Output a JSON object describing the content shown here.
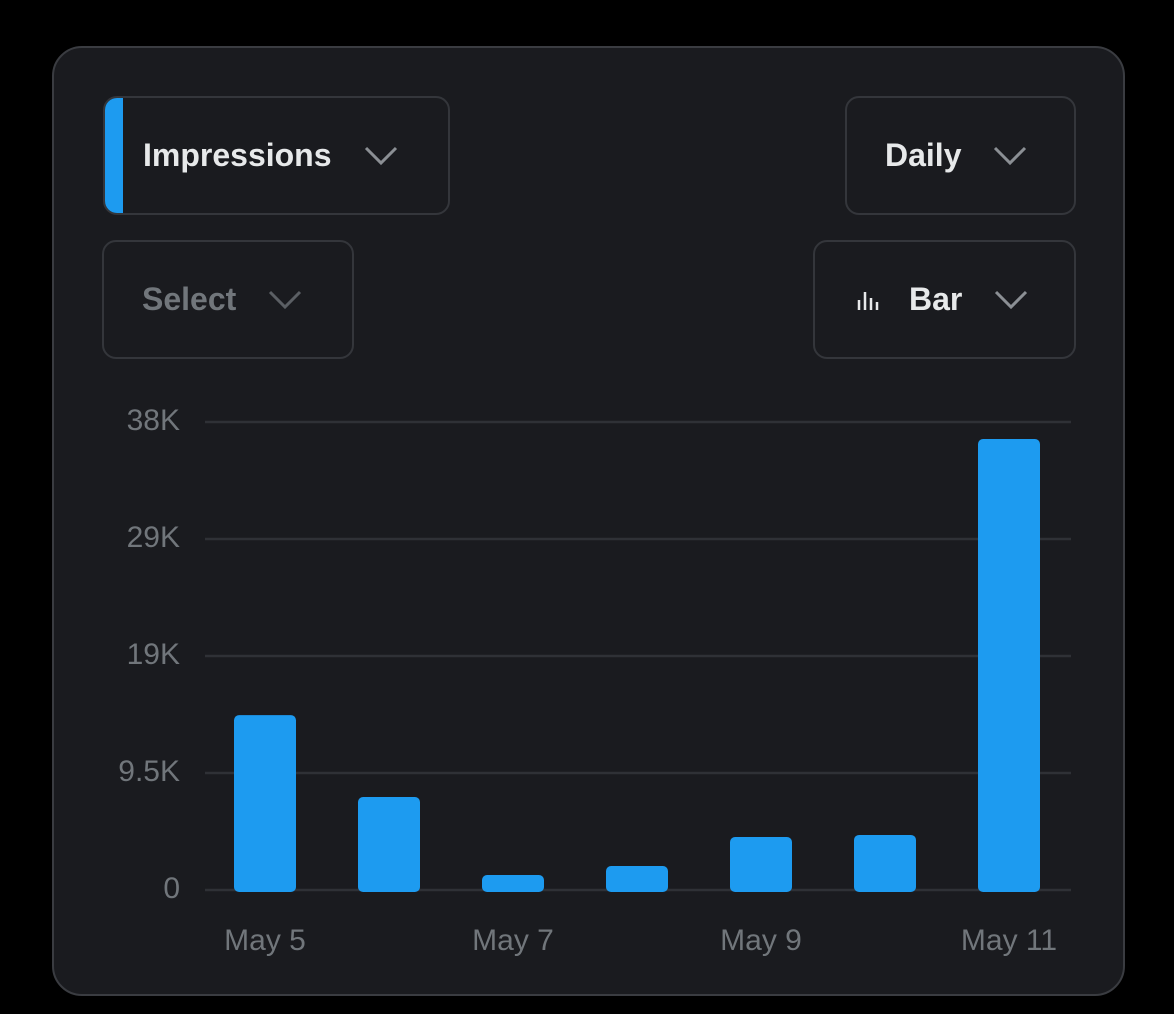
{
  "controls": {
    "metric": "Impressions",
    "period": "Daily",
    "compare": "Select",
    "chart_kind": "Bar"
  },
  "chart_data": {
    "type": "bar",
    "categories": [
      "May 5",
      null,
      "May 7",
      null,
      "May 9",
      null,
      "May 11"
    ],
    "values": [
      14200,
      7550,
      1220,
      1950,
      4300,
      4470,
      36620
    ],
    "color": "#1d9bf0",
    "ylim": [
      0,
      38000
    ],
    "yticks": [
      0,
      {
        "value": 9500,
        "label": "9.5K"
      },
      {
        "value": 19000,
        "label": "19K"
      },
      {
        "value": 28500,
        "label": "29K"
      },
      {
        "value": 38000,
        "label": "38K"
      }
    ],
    "grid": true
  }
}
